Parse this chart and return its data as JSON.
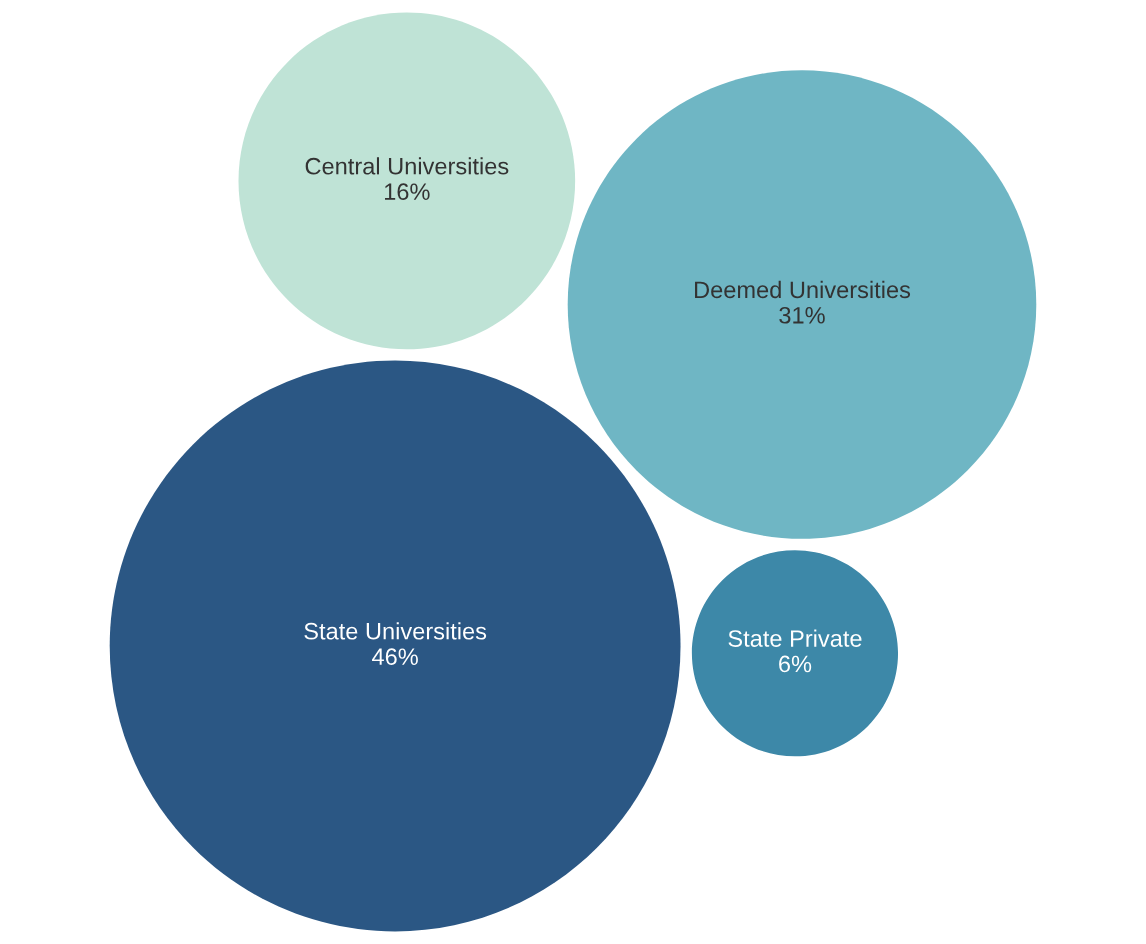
{
  "chart_data": {
    "type": "other",
    "categories": [
      "Central Universities",
      "Deemed Universities",
      "State Private",
      "State Universities"
    ],
    "values": [
      16,
      31,
      6,
      46
    ],
    "value_labels": [
      "16%",
      "31%",
      "6%",
      "46%"
    ],
    "colors": [
      "#bfe3d6",
      "#6fb6c4",
      "#3d88a8",
      "#2b5784"
    ]
  }
}
